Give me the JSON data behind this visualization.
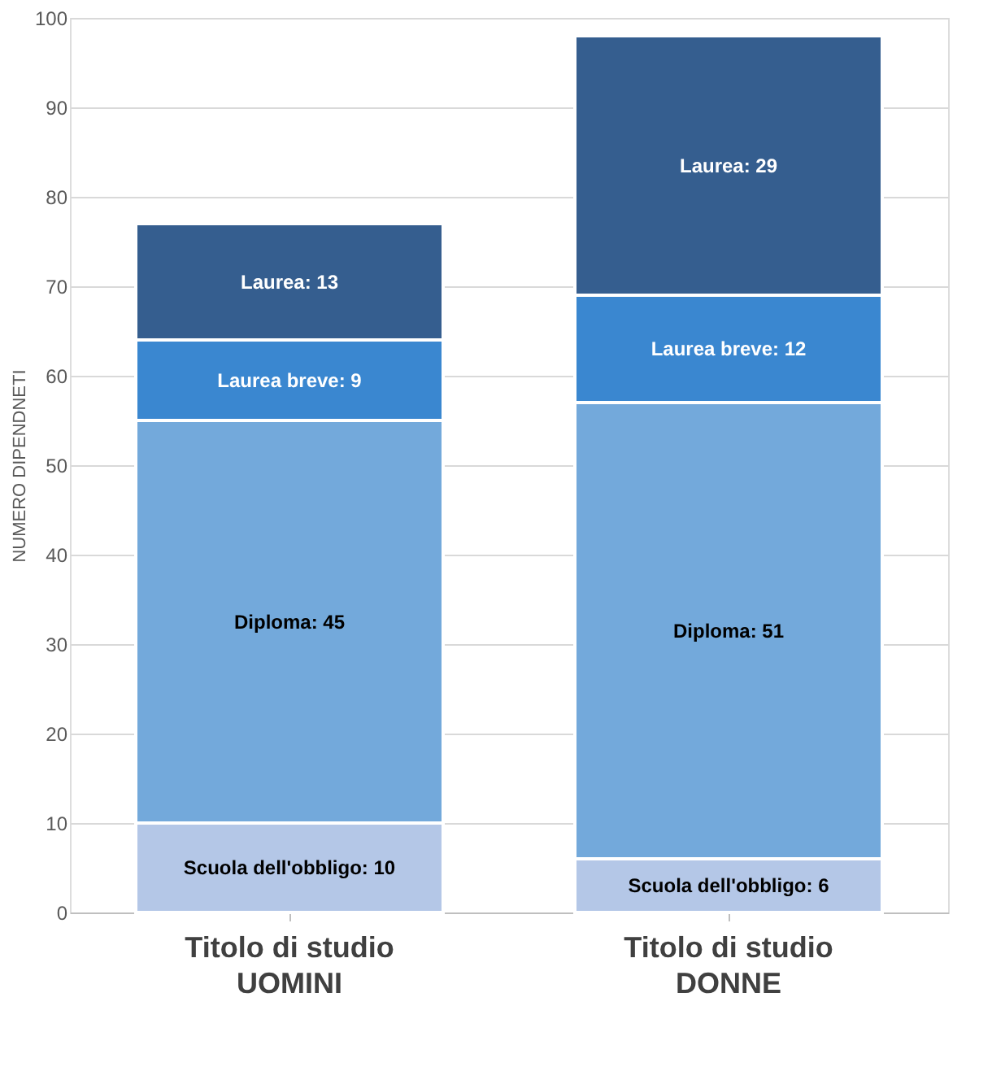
{
  "chart_data": {
    "type": "bar",
    "stacked": true,
    "categories": [
      "Titolo di studio\nUOMINI",
      "Titolo di studio\nDONNE"
    ],
    "series": [
      {
        "color": "#b4c7e7",
        "values": [
          10,
          6
        ],
        "value_labels": [
          "Scuola dell'obbligo: 10",
          "Scuola dell'obbligo: 6"
        ]
      },
      {
        "color": "#73a9db",
        "values": [
          45,
          51
        ],
        "value_labels": [
          "Diploma: 45",
          "Diploma: 51"
        ]
      },
      {
        "color": "#3a87d0",
        "values": [
          9,
          12
        ],
        "value_labels": [
          "Laurea breve: 9",
          "Laurea breve: 12"
        ]
      },
      {
        "color": "#355e8f",
        "values": [
          13,
          29
        ],
        "value_labels": [
          "Laurea:  13",
          "Laurea:  29"
        ]
      }
    ],
    "ylabel": "NUMERO DIPENDNETI",
    "ylim": [
      0,
      100
    ],
    "yticks": [
      0,
      10,
      20,
      30,
      40,
      50,
      60,
      70,
      80,
      90,
      100
    ],
    "grid": "y"
  }
}
